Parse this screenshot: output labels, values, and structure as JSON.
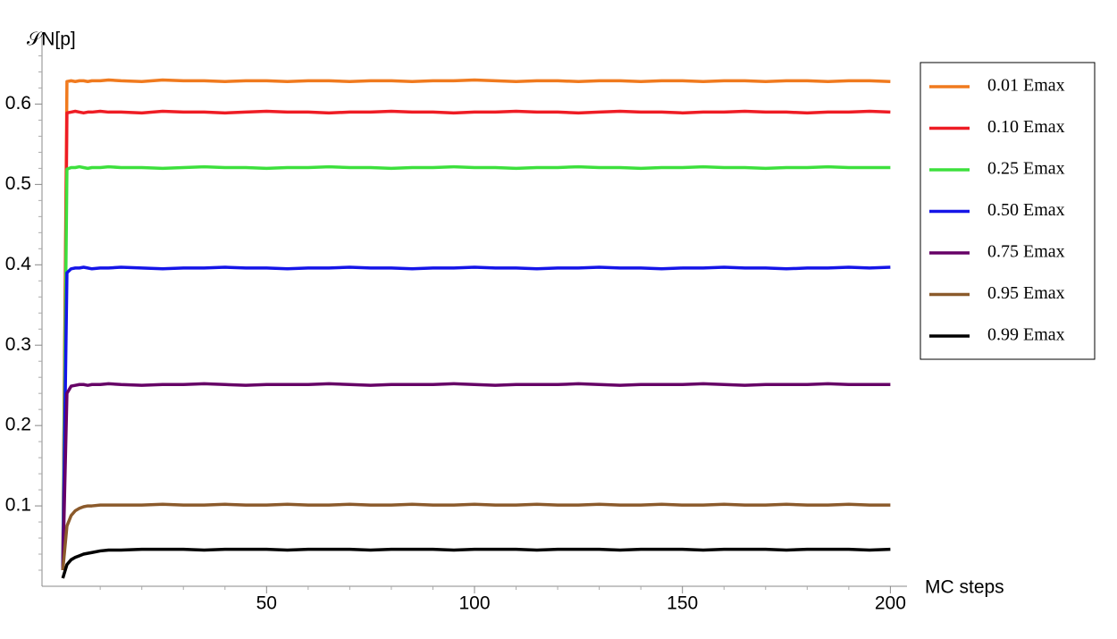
{
  "chart_data": {
    "type": "line",
    "y_label": "𝒮N[p]",
    "x_label": "MC steps",
    "xlim": [
      -4,
      204
    ],
    "ylim": [
      0,
      0.685
    ],
    "xticks": [
      50,
      100,
      150,
      200
    ],
    "xminorticks": [
      10,
      20,
      30,
      40,
      60,
      70,
      80,
      90,
      110,
      120,
      130,
      140,
      160,
      170,
      180,
      190
    ],
    "yticks": [
      0.1,
      0.2,
      0.3,
      0.4,
      0.5,
      0.6
    ],
    "yminorticks": [
      0.02,
      0.04,
      0.06,
      0.08,
      0.12,
      0.14,
      0.16,
      0.18,
      0.22,
      0.24,
      0.26,
      0.28,
      0.32,
      0.34,
      0.36,
      0.38,
      0.42,
      0.44,
      0.46,
      0.48,
      0.52,
      0.54,
      0.56,
      0.58,
      0.62,
      0.64,
      0.66
    ],
    "legend": "right",
    "x": [
      1,
      2,
      3,
      4,
      5,
      6,
      7,
      8,
      10,
      12,
      15,
      20,
      25,
      30,
      35,
      40,
      45,
      50,
      55,
      60,
      65,
      70,
      75,
      80,
      85,
      90,
      95,
      100,
      105,
      110,
      115,
      120,
      125,
      130,
      135,
      140,
      145,
      150,
      155,
      160,
      165,
      170,
      175,
      180,
      185,
      190,
      195,
      200
    ],
    "series": [
      {
        "name": "0.01 Emax",
        "color": "#f07a1e",
        "values": [
          0.02,
          0.628,
          0.629,
          0.628,
          0.629,
          0.629,
          0.628,
          0.629,
          0.629,
          0.63,
          0.629,
          0.628,
          0.63,
          0.629,
          0.629,
          0.628,
          0.629,
          0.629,
          0.628,
          0.629,
          0.629,
          0.628,
          0.629,
          0.629,
          0.628,
          0.629,
          0.629,
          0.63,
          0.629,
          0.628,
          0.629,
          0.629,
          0.628,
          0.629,
          0.629,
          0.628,
          0.629,
          0.629,
          0.628,
          0.629,
          0.629,
          0.628,
          0.629,
          0.629,
          0.628,
          0.629,
          0.629,
          0.628
        ]
      },
      {
        "name": "0.10 Emax",
        "color": "#ee1c24",
        "values": [
          0.02,
          0.589,
          0.59,
          0.591,
          0.59,
          0.589,
          0.59,
          0.59,
          0.591,
          0.59,
          0.59,
          0.589,
          0.591,
          0.59,
          0.59,
          0.589,
          0.59,
          0.591,
          0.59,
          0.59,
          0.589,
          0.59,
          0.59,
          0.591,
          0.59,
          0.59,
          0.589,
          0.59,
          0.59,
          0.591,
          0.59,
          0.59,
          0.589,
          0.59,
          0.591,
          0.59,
          0.59,
          0.589,
          0.59,
          0.59,
          0.591,
          0.59,
          0.59,
          0.589,
          0.59,
          0.59,
          0.591,
          0.59
        ]
      },
      {
        "name": "0.25 Emax",
        "color": "#3de03d",
        "values": [
          0.02,
          0.519,
          0.521,
          0.521,
          0.522,
          0.521,
          0.52,
          0.521,
          0.521,
          0.522,
          0.521,
          0.521,
          0.52,
          0.521,
          0.522,
          0.521,
          0.521,
          0.52,
          0.521,
          0.521,
          0.522,
          0.521,
          0.521,
          0.52,
          0.521,
          0.521,
          0.522,
          0.521,
          0.521,
          0.52,
          0.521,
          0.521,
          0.522,
          0.521,
          0.521,
          0.52,
          0.521,
          0.521,
          0.522,
          0.521,
          0.521,
          0.52,
          0.521,
          0.521,
          0.522,
          0.521,
          0.521,
          0.521
        ]
      },
      {
        "name": "0.50 Emax",
        "color": "#1515e8",
        "values": [
          0.02,
          0.39,
          0.395,
          0.396,
          0.396,
          0.397,
          0.396,
          0.395,
          0.396,
          0.396,
          0.397,
          0.396,
          0.395,
          0.396,
          0.396,
          0.397,
          0.396,
          0.396,
          0.395,
          0.396,
          0.396,
          0.397,
          0.396,
          0.396,
          0.395,
          0.396,
          0.396,
          0.397,
          0.396,
          0.396,
          0.395,
          0.396,
          0.396,
          0.397,
          0.396,
          0.396,
          0.395,
          0.396,
          0.396,
          0.397,
          0.396,
          0.396,
          0.395,
          0.396,
          0.396,
          0.397,
          0.396,
          0.397
        ]
      },
      {
        "name": "0.75 Emax",
        "color": "#660066",
        "values": [
          0.02,
          0.24,
          0.249,
          0.25,
          0.251,
          0.251,
          0.25,
          0.251,
          0.251,
          0.252,
          0.251,
          0.25,
          0.251,
          0.251,
          0.252,
          0.251,
          0.25,
          0.251,
          0.251,
          0.251,
          0.252,
          0.251,
          0.25,
          0.251,
          0.251,
          0.251,
          0.252,
          0.251,
          0.25,
          0.251,
          0.251,
          0.251,
          0.252,
          0.251,
          0.25,
          0.251,
          0.251,
          0.251,
          0.252,
          0.251,
          0.25,
          0.251,
          0.251,
          0.251,
          0.252,
          0.251,
          0.251,
          0.251
        ]
      },
      {
        "name": "0.95 Emax",
        "color": "#8b5a2b",
        "values": [
          0.02,
          0.075,
          0.088,
          0.094,
          0.097,
          0.099,
          0.1,
          0.1,
          0.101,
          0.101,
          0.101,
          0.101,
          0.102,
          0.101,
          0.101,
          0.102,
          0.101,
          0.101,
          0.102,
          0.101,
          0.101,
          0.102,
          0.101,
          0.101,
          0.102,
          0.101,
          0.101,
          0.102,
          0.101,
          0.101,
          0.102,
          0.101,
          0.101,
          0.102,
          0.101,
          0.101,
          0.102,
          0.101,
          0.101,
          0.102,
          0.101,
          0.101,
          0.102,
          0.101,
          0.101,
          0.102,
          0.101,
          0.101
        ]
      },
      {
        "name": "0.99 Emax",
        "color": "#000000",
        "values": [
          0.01,
          0.027,
          0.033,
          0.036,
          0.038,
          0.04,
          0.041,
          0.042,
          0.044,
          0.045,
          0.045,
          0.046,
          0.046,
          0.046,
          0.045,
          0.046,
          0.046,
          0.046,
          0.045,
          0.046,
          0.046,
          0.046,
          0.045,
          0.046,
          0.046,
          0.046,
          0.045,
          0.046,
          0.046,
          0.046,
          0.045,
          0.046,
          0.046,
          0.046,
          0.045,
          0.046,
          0.046,
          0.046,
          0.045,
          0.046,
          0.046,
          0.046,
          0.045,
          0.046,
          0.046,
          0.046,
          0.045,
          0.046
        ]
      }
    ]
  }
}
